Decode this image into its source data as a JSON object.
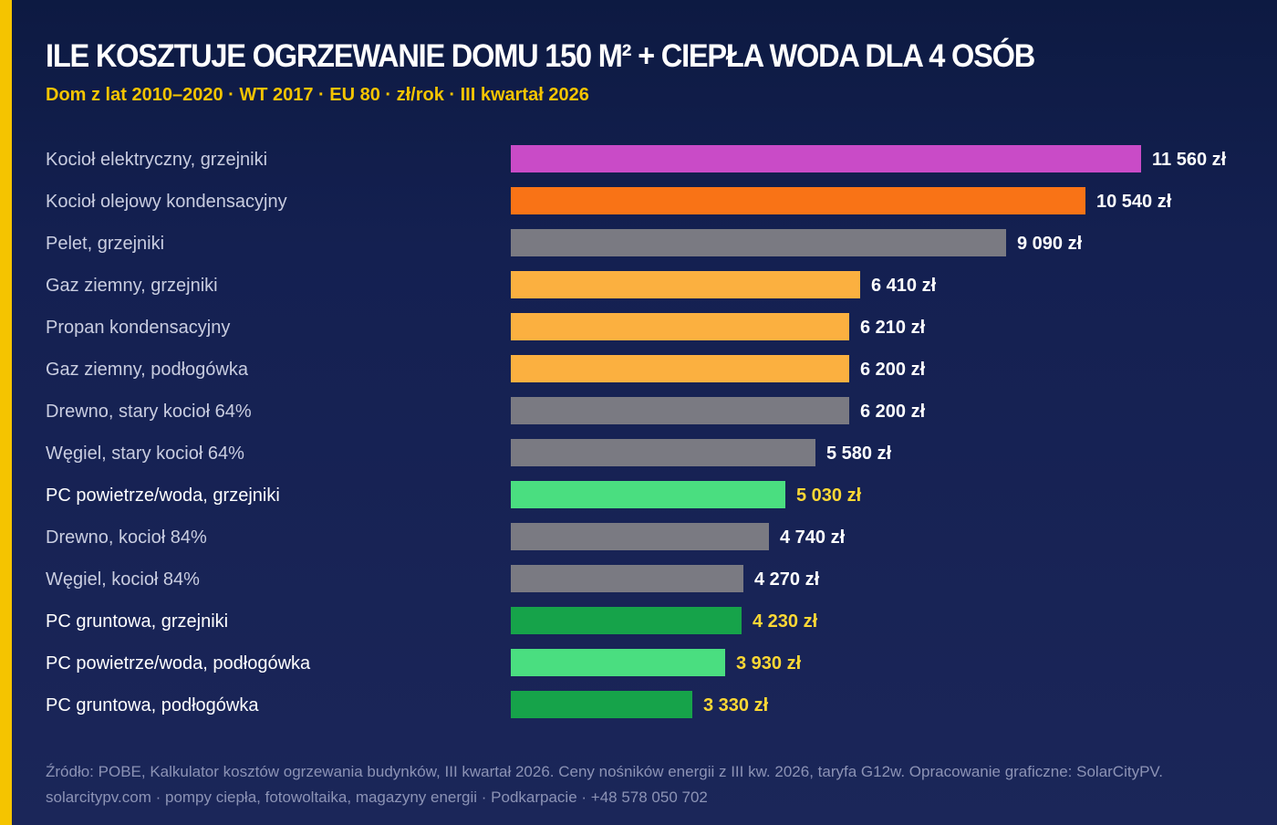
{
  "header": {
    "title": "ILE KOSZTUJE OGRZEWANIE DOMU 150 M² + CIEPŁA WODA DLA 4 OSÓB",
    "subtitle": "Dom z lat 2010–2020 · WT 2017 · EU 80 · zł/rok · III kwartał 2026"
  },
  "colors": {
    "accent": "#f5c400",
    "electric": "#c94bc7",
    "oil": "#f97316",
    "solid_fuel": "#7a7a82",
    "gas_propane": "#fbb040",
    "heat_pump_air": "#4ade80",
    "heat_pump_ground": "#16a34a",
    "label_default": "#c9cde0",
    "label_highlight": "#ffffff",
    "value_default": "#ffffff",
    "value_highlight": "#fdd835"
  },
  "chart_data": {
    "type": "bar",
    "orientation": "horizontal",
    "title": "ILE KOSZTUJE OGRZEWANIE DOMU 150 M² + CIEPŁA WODA DLA 4 OSÓB",
    "subtitle": "Dom z lat 2010–2020 · WT 2017 · EU 80 · zł/rok · III kwartał 2026",
    "unit": "zł/rok",
    "xlim": [
      0,
      11560
    ],
    "grid": false,
    "legend": "none",
    "categories": [
      "Kocioł elektryczny, grzejniki",
      "Kocioł olejowy kondensacyjny",
      "Pelet, grzejniki",
      "Gaz ziemny, grzejniki",
      "Propan kondensacyjny",
      "Gaz ziemny, podłogówka",
      "Drewno, stary kocioł 64%",
      "Węgiel, stary kocioł 64%",
      "PC powietrze/woda, grzejniki",
      "Drewno, kocioł 84%",
      "Węgiel, kocioł 84%",
      "PC gruntowa, grzejniki",
      "PC powietrze/woda, podłogówka",
      "PC gruntowa, podłogówka"
    ],
    "values": [
      11560,
      10540,
      9090,
      6410,
      6210,
      6200,
      6200,
      5580,
      5030,
      4740,
      4270,
      4230,
      3930,
      3330
    ],
    "value_labels": [
      "11 560 zł",
      "10 540 zł",
      "9 090 zł",
      "6 410 zł",
      "6 210 zł",
      "6 200 zł",
      "6 200 zł",
      "5 580 zł",
      "5 030 zł",
      "4 740 zł",
      "4 270 zł",
      "4 230 zł",
      "3 930 zł",
      "3 330 zł"
    ],
    "bar_colors": [
      "#c94bc7",
      "#f97316",
      "#7a7a82",
      "#fbb040",
      "#fbb040",
      "#fbb040",
      "#7a7a82",
      "#7a7a82",
      "#4ade80",
      "#7a7a82",
      "#7a7a82",
      "#16a34a",
      "#4ade80",
      "#16a34a"
    ],
    "highlighted": [
      false,
      false,
      false,
      false,
      false,
      false,
      false,
      false,
      true,
      false,
      false,
      true,
      true,
      true
    ]
  },
  "footer": {
    "source": "Źródło: POBE, Kalkulator kosztów ogrzewania budynków, III kwartał 2026. Ceny nośników energii z III kw. 2026, taryfa G12w. Opracowanie graficzne: SolarCityPV.",
    "contact": "solarcitypv.com · pompy ciepła, fotowoltaika, magazyny energii · Podkarpacie · +48 578 050 702"
  }
}
